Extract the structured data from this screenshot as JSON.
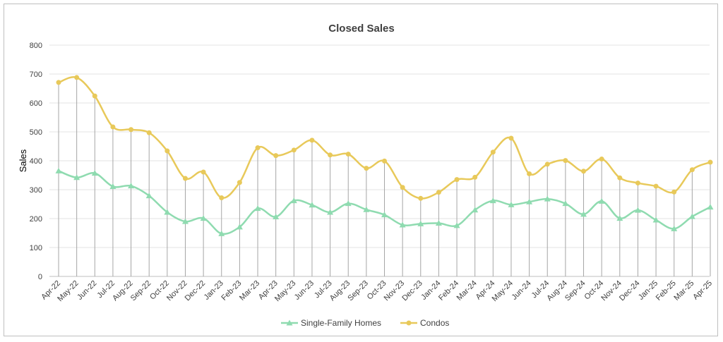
{
  "chart_data": {
    "type": "line",
    "title": "Closed Sales",
    "xlabel": "",
    "ylabel": "Sales",
    "ylim": [
      0,
      800
    ],
    "yticks": [
      0,
      100,
      200,
      300,
      400,
      500,
      600,
      700,
      800
    ],
    "grid": "horizontal",
    "drop_lines": true,
    "legend_position": "bottom",
    "categories": [
      "Apr-22",
      "May-22",
      "Jun-22",
      "Jul-22",
      "Aug-22",
      "Sep-22",
      "Oct-22",
      "Nov-22",
      "Dec-22",
      "Jan-23",
      "Feb-23",
      "Mar-23",
      "Apr-23",
      "May-23",
      "Jun-23",
      "Jul-23",
      "Aug-23",
      "Sep-23",
      "Oct-23",
      "Nov-23",
      "Dec-23",
      "Jan-24",
      "Feb-24",
      "Mar-24",
      "Apr-24",
      "May-24",
      "Jun-24",
      "Jul-24",
      "Aug-24",
      "Sep-24",
      "Oct-24",
      "Nov-24",
      "Dec-24",
      "Jan-25",
      "Feb-25",
      "Mar-25",
      "Apr-25"
    ],
    "series": [
      {
        "name": "Single-Family Homes",
        "color": "#8fdbb0",
        "marker": "triangle",
        "values": [
          365,
          342,
          357,
          311,
          313,
          279,
          222,
          190,
          201,
          148,
          171,
          235,
          206,
          262,
          247,
          222,
          252,
          231,
          213,
          178,
          182,
          184,
          176,
          230,
          262,
          248,
          258,
          268,
          252,
          215,
          260,
          201,
          229,
          195,
          165,
          207,
          240
        ]
      },
      {
        "name": "Condos",
        "color": "#e8c95a",
        "marker": "circle",
        "values": [
          671,
          688,
          624,
          517,
          508,
          497,
          434,
          339,
          361,
          272,
          325,
          445,
          418,
          437,
          471,
          420,
          423,
          374,
          399,
          308,
          270,
          291,
          335,
          343,
          430,
          478,
          355,
          388,
          401,
          364,
          406,
          341,
          323,
          312,
          292,
          369,
          395
        ]
      }
    ]
  }
}
